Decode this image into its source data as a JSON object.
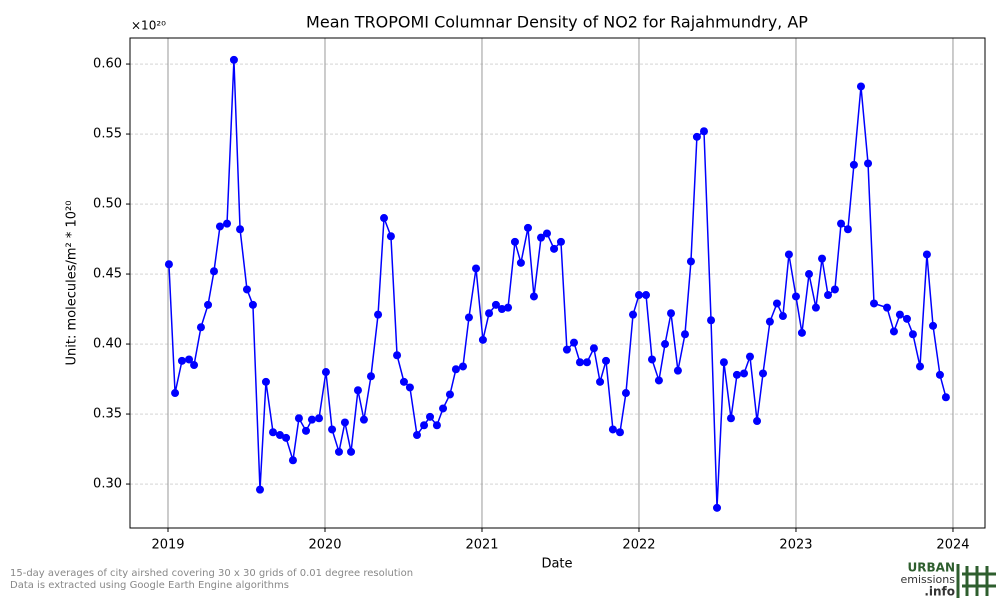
{
  "chart_data": {
    "type": "line",
    "title": "Mean TROPOMI Columnar Density of NO2 for Rajahmundry, AP",
    "x_label": "Date",
    "y_label": "Unit: molecules/m² * 10²⁰",
    "y_offset_text": "×10²⁰",
    "x": [
      2019.006,
      2019.045,
      2019.089,
      2019.134,
      2019.166,
      2019.21,
      2019.255,
      2019.293,
      2019.331,
      2019.376,
      2019.42,
      2019.459,
      2019.503,
      2019.541,
      2019.586,
      2019.624,
      2019.669,
      2019.713,
      2019.752,
      2019.796,
      2019.834,
      2019.879,
      2019.917,
      2019.962,
      2020.006,
      2020.045,
      2020.089,
      2020.127,
      2020.166,
      2020.21,
      2020.248,
      2020.293,
      2020.338,
      2020.376,
      2020.42,
      2020.459,
      2020.503,
      2020.541,
      2020.586,
      2020.631,
      2020.669,
      2020.713,
      2020.752,
      2020.796,
      2020.834,
      2020.879,
      2020.917,
      2020.962,
      2021.006,
      2021.045,
      2021.089,
      2021.127,
      2021.166,
      2021.21,
      2021.248,
      2021.293,
      2021.331,
      2021.376,
      2021.414,
      2021.459,
      2021.503,
      2021.541,
      2021.586,
      2021.624,
      2021.669,
      2021.713,
      2021.752,
      2021.79,
      2021.834,
      2021.879,
      2021.917,
      2021.962,
      2022.0,
      2022.045,
      2022.083,
      2022.127,
      2022.166,
      2022.204,
      2022.248,
      2022.293,
      2022.331,
      2022.369,
      2022.414,
      2022.459,
      2022.497,
      2022.541,
      2022.586,
      2022.624,
      2022.669,
      2022.707,
      2022.752,
      2022.79,
      2022.834,
      2022.879,
      2022.917,
      2022.955,
      2023.0,
      2023.038,
      2023.083,
      2023.127,
      2023.166,
      2023.204,
      2023.248,
      2023.287,
      2023.331,
      2023.369,
      2023.414,
      2023.459,
      2023.497,
      2023.58,
      2023.624,
      2023.662,
      2023.707,
      2023.745,
      2023.79,
      2023.834,
      2023.873,
      2023.917,
      2023.955
    ],
    "series": [
      {
        "color": "#0000ff",
        "values": [
          0.457,
          0.365,
          0.388,
          0.389,
          0.385,
          0.412,
          0.428,
          0.452,
          0.484,
          0.486,
          0.603,
          0.482,
          0.439,
          0.428,
          0.296,
          0.373,
          0.337,
          0.335,
          0.333,
          0.317,
          0.347,
          0.338,
          0.346,
          0.347,
          0.38,
          0.339,
          0.323,
          0.344,
          0.323,
          0.367,
          0.346,
          0.377,
          0.421,
          0.49,
          0.477,
          0.392,
          0.373,
          0.369,
          0.335,
          0.342,
          0.348,
          0.342,
          0.354,
          0.364,
          0.382,
          0.384,
          0.419,
          0.454,
          0.403,
          0.422,
          0.428,
          0.425,
          0.426,
          0.473,
          0.458,
          0.483,
          0.434,
          0.476,
          0.479,
          0.468,
          0.473,
          0.396,
          0.401,
          0.387,
          0.387,
          0.397,
          0.373,
          0.388,
          0.339,
          0.337,
          0.365,
          0.421,
          0.435,
          0.435,
          0.389,
          0.374,
          0.4,
          0.422,
          0.381,
          0.407,
          0.459,
          0.548,
          0.552,
          0.417,
          0.283,
          0.387,
          0.347,
          0.378,
          0.379,
          0.391,
          0.345,
          0.379,
          0.416,
          0.429,
          0.42,
          0.464,
          0.434,
          0.408,
          0.45,
          0.426,
          0.461,
          0.435,
          0.439,
          0.486,
          0.482,
          0.528,
          0.584,
          0.529,
          0.429,
          0.426,
          0.409,
          0.421,
          0.418,
          0.407,
          0.384,
          0.464,
          0.413,
          0.378,
          0.362
        ]
      }
    ],
    "xlim": [
      2018.758,
      2024.204
    ],
    "ylim": [
      0.2686,
      0.6186
    ],
    "xticks": [
      2019,
      2020,
      2021,
      2022,
      2023,
      2024
    ],
    "yticks": [
      {
        "value": 0.3,
        "label": "0.30"
      },
      0.35,
      {
        "value": 0.4,
        "label": "0.40"
      },
      0.45,
      {
        "value": 0.5,
        "label": "0.50"
      },
      0.55,
      {
        "value": 0.6,
        "label": "0.60"
      }
    ],
    "grid": true,
    "notes": [
      "15-day averages of city airshed covering 30 x 30 grids of 0.01 degree resolution",
      "Data is extracted using Google Earth Engine algorithms"
    ],
    "logo": [
      "URBAN",
      "emissions",
      ".info"
    ]
  }
}
